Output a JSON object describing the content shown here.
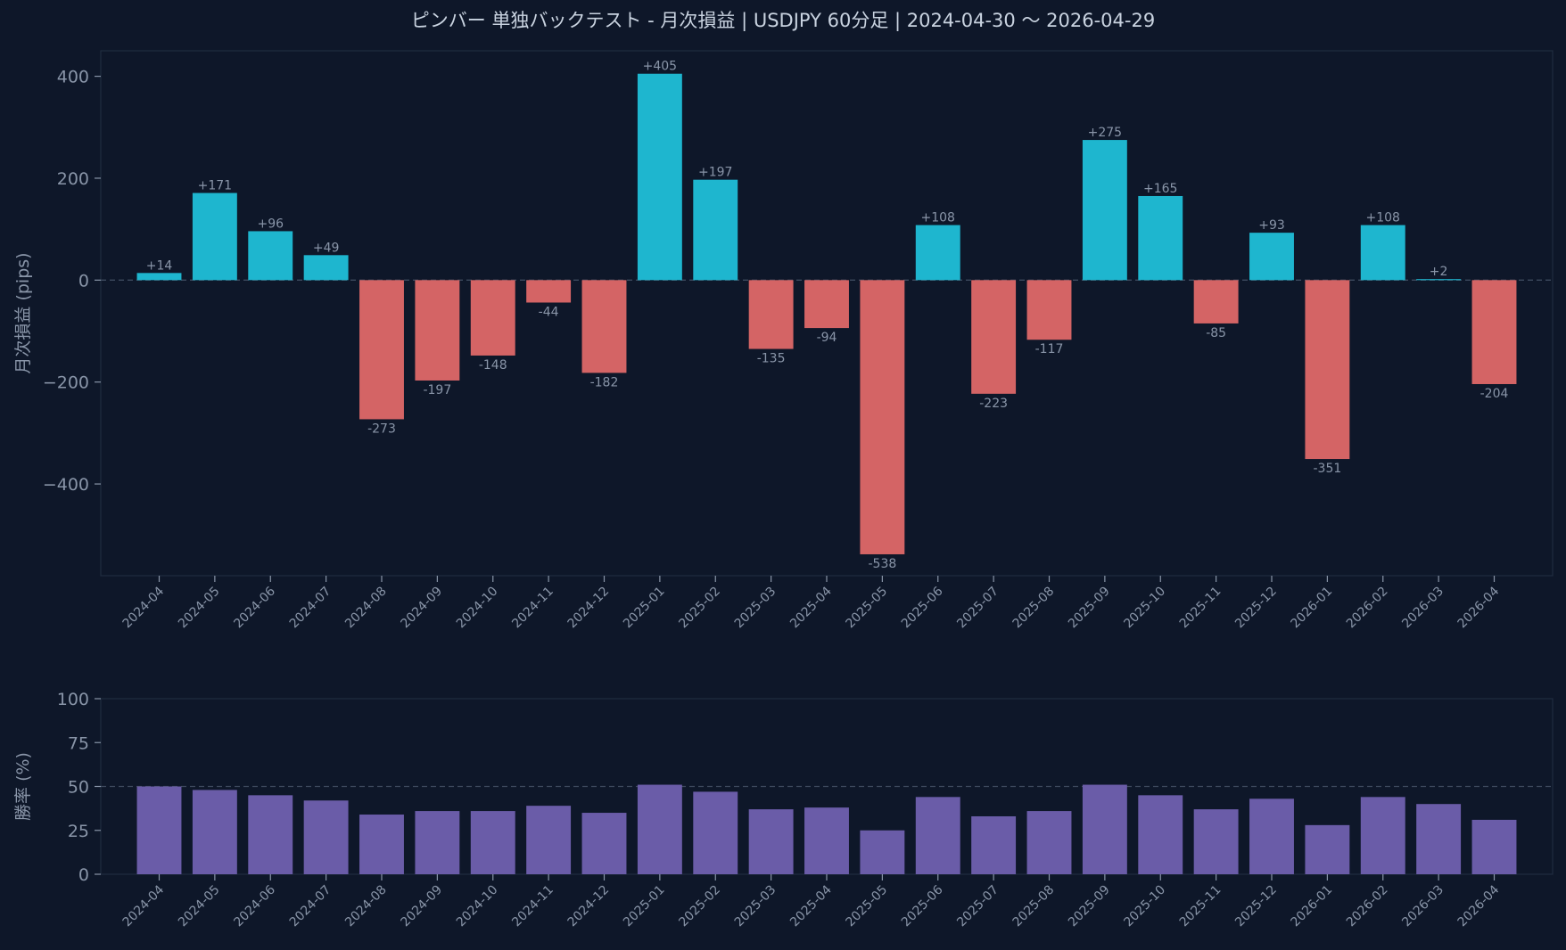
{
  "title": "ピンバー 単独バックテスト - 月次損益 | USDJPY 60分足 | 2024-04-30 〜 2026-04-29",
  "colors": {
    "background": "#0e1729",
    "positive": "#1eb6cf",
    "negative": "#d46465",
    "winrate": "#6a5ca8",
    "text": "#8995a8",
    "title_text": "#c9d3e0"
  },
  "chart_data": [
    {
      "type": "bar",
      "ylabel": "月次損益 (pips)",
      "ylim": [
        -580,
        450
      ],
      "yticks": [
        400,
        200,
        0,
        -200,
        -400
      ],
      "ytick_labels": [
        "400",
        "200",
        "0",
        "−200",
        "−400"
      ],
      "reference_line": 0,
      "categories": [
        "2024-04",
        "2024-05",
        "2024-06",
        "2024-07",
        "2024-08",
        "2024-09",
        "2024-10",
        "2024-11",
        "2024-12",
        "2025-01",
        "2025-02",
        "2025-03",
        "2025-04",
        "2025-05",
        "2025-06",
        "2025-07",
        "2025-08",
        "2025-09",
        "2025-10",
        "2025-11",
        "2025-12",
        "2026-01",
        "2026-02",
        "2026-03",
        "2026-04"
      ],
      "values": [
        14,
        171,
        96,
        49,
        -273,
        -197,
        -148,
        -44,
        -182,
        405,
        197,
        -135,
        -94,
        -538,
        108,
        -223,
        -117,
        275,
        165,
        -85,
        93,
        -351,
        108,
        2,
        -204
      ],
      "data_labels": [
        "+14",
        "+171",
        "+96",
        "+49",
        "-273",
        "-197",
        "-148",
        "-44",
        "-182",
        "+405",
        "+197",
        "-135",
        "-94",
        "-538",
        "+108",
        "-223",
        "-117",
        "+275",
        "+165",
        "-85",
        "+93",
        "-351",
        "+108",
        "+2",
        "-204"
      ]
    },
    {
      "type": "bar",
      "ylabel": "勝率 (%)",
      "ylim": [
        0,
        100
      ],
      "yticks": [
        100,
        75,
        50,
        25,
        0
      ],
      "ytick_labels": [
        "100",
        "75",
        "50",
        "25",
        "0"
      ],
      "reference_line": 50,
      "categories": [
        "2024-04",
        "2024-05",
        "2024-06",
        "2024-07",
        "2024-08",
        "2024-09",
        "2024-10",
        "2024-11",
        "2024-12",
        "2025-01",
        "2025-02",
        "2025-03",
        "2025-04",
        "2025-05",
        "2025-06",
        "2025-07",
        "2025-08",
        "2025-09",
        "2025-10",
        "2025-11",
        "2025-12",
        "2026-01",
        "2026-02",
        "2026-03",
        "2026-04"
      ],
      "values": [
        50,
        48,
        45,
        42,
        34,
        36,
        36,
        39,
        35,
        51,
        47,
        37,
        38,
        25,
        44,
        33,
        36,
        51,
        45,
        37,
        43,
        28,
        44,
        40,
        31
      ]
    }
  ]
}
